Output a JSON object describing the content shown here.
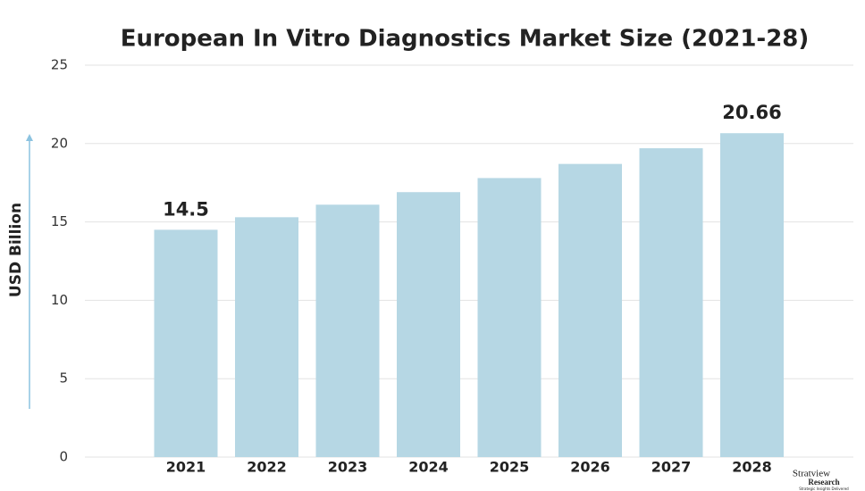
{
  "chart_data": {
    "type": "bar",
    "title": "European In Vitro Diagnostics Market Size (2021-28)",
    "y_label": "USD Billion",
    "categories": [
      "2021",
      "2022",
      "2023",
      "2024",
      "2025",
      "2026",
      "2027",
      "2028"
    ],
    "values": [
      14.5,
      15.3,
      16.1,
      16.9,
      17.8,
      18.7,
      19.7,
      20.66
    ],
    "value_labels": [
      "14.5",
      null,
      null,
      null,
      null,
      null,
      null,
      "20.66"
    ],
    "color": "#b6d7e4",
    "ylim": [
      0,
      25
    ],
    "yticks": [
      0,
      5,
      10,
      15,
      20,
      25
    ],
    "grid": true
  },
  "logo": {
    "name": "Stratview",
    "sub": "Research",
    "tagline": "Strategic Insights Delivered"
  }
}
